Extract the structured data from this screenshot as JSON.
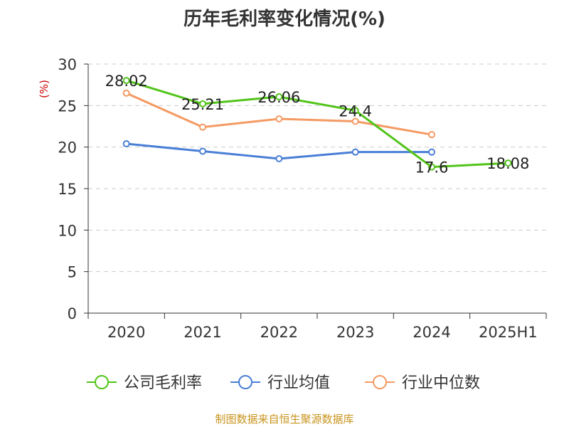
{
  "chart_data": {
    "type": "line",
    "title": "历年毛利率变化情况(%)",
    "ylabel": "(%)",
    "xlabel": "",
    "categories": [
      "2020",
      "2021",
      "2022",
      "2023",
      "2024",
      "2025H1"
    ],
    "ylim": [
      0,
      30
    ],
    "yticks": [
      0,
      5,
      10,
      15,
      20,
      25,
      30
    ],
    "grid": true,
    "legend_position": "bottom",
    "series": [
      {
        "name": "公司毛利率",
        "color": "#52c41a",
        "values": [
          28.02,
          25.21,
          26.06,
          24.4,
          17.6,
          18.08
        ],
        "labels": [
          "28.02",
          "25.21",
          "26.06",
          "24.4",
          "17.6",
          "18.08"
        ]
      },
      {
        "name": "行业均值",
        "color": "#4a7fd6",
        "values": [
          20.4,
          19.5,
          18.6,
          19.4,
          19.4,
          null
        ]
      },
      {
        "name": "行业中位数",
        "color": "#f59a63",
        "values": [
          26.5,
          22.4,
          23.4,
          23.1,
          21.5,
          null
        ]
      }
    ],
    "source": "制图数据来自恒生聚源数据库"
  }
}
